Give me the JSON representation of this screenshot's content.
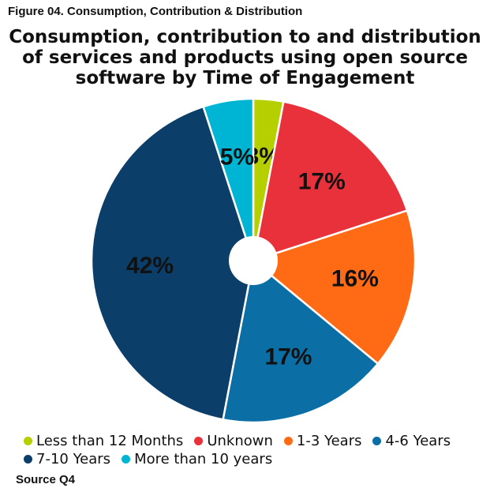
{
  "chart_data": {
    "type": "pie",
    "caption": "Figure 04. Consumption, Contribution & Distribution",
    "title": "Consumption, contribution to and distribution of services and products using open source software by Time of Engagement",
    "categories": [
      "Less than 12 Months",
      "Unknown",
      "1-3 Years",
      "4-6 Years",
      "7-10 Years",
      "More than 10 years"
    ],
    "values": [
      3,
      17,
      16,
      17,
      42,
      5
    ],
    "value_labels": [
      "3%",
      "17%",
      "16%",
      "17%",
      "42%",
      "5%"
    ],
    "colors": [
      "#b5cf00",
      "#e8313b",
      "#ff6a14",
      "#0b6fa6",
      "#0b3e69",
      "#00b5d4"
    ],
    "source": "Source Q4"
  }
}
